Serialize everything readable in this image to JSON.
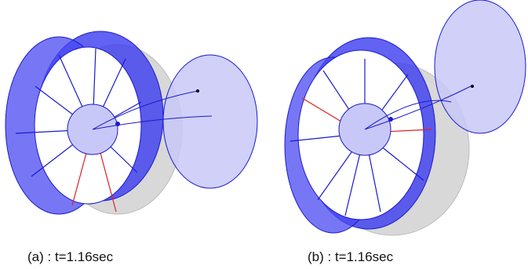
{
  "captions": [
    "(a) : t=1.16sec",
    "(b) : t=1.16sec"
  ]
}
